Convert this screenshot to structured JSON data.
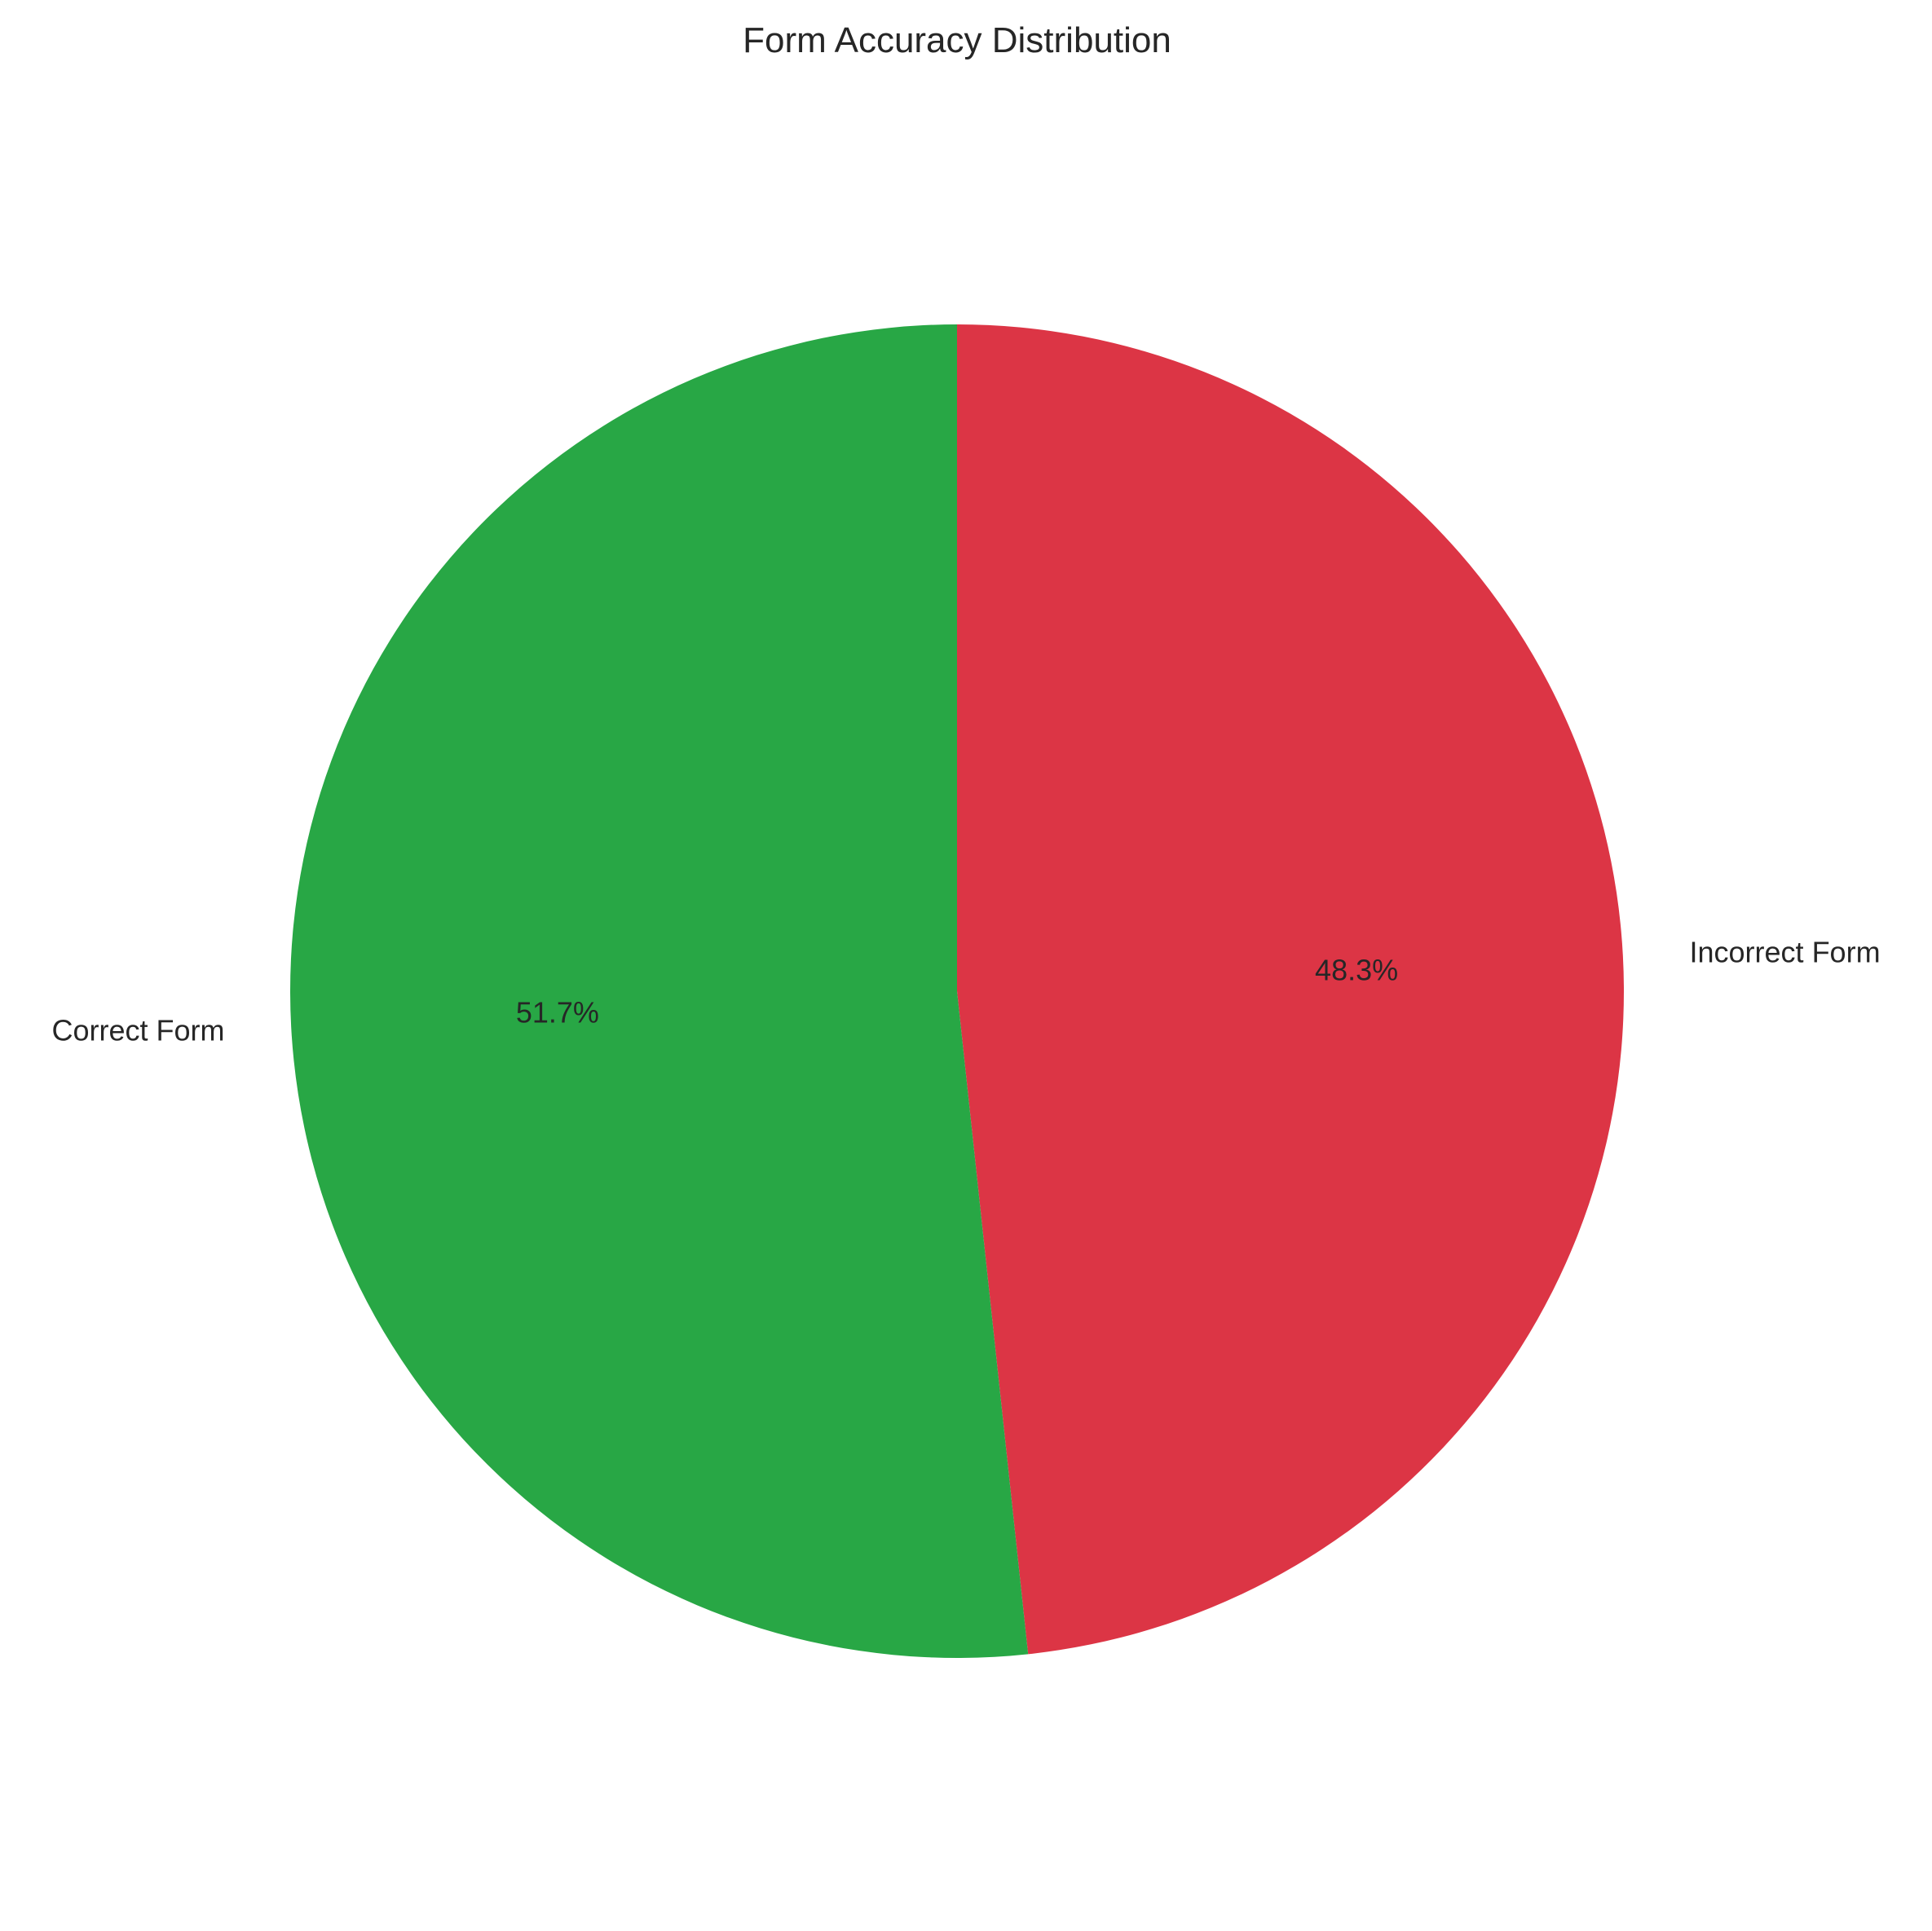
{
  "chart_data": {
    "type": "pie",
    "title": "Form Accuracy Distribution",
    "slices": [
      {
        "label": "Incorrect Form",
        "value": 48.3,
        "pct_label": "48.3%",
        "color": "#dc3545"
      },
      {
        "label": "Correct Form",
        "value": 51.7,
        "pct_label": "51.7%",
        "color": "#28a745"
      }
    ],
    "start_angle_deg": 90,
    "direction": "clockwise"
  }
}
